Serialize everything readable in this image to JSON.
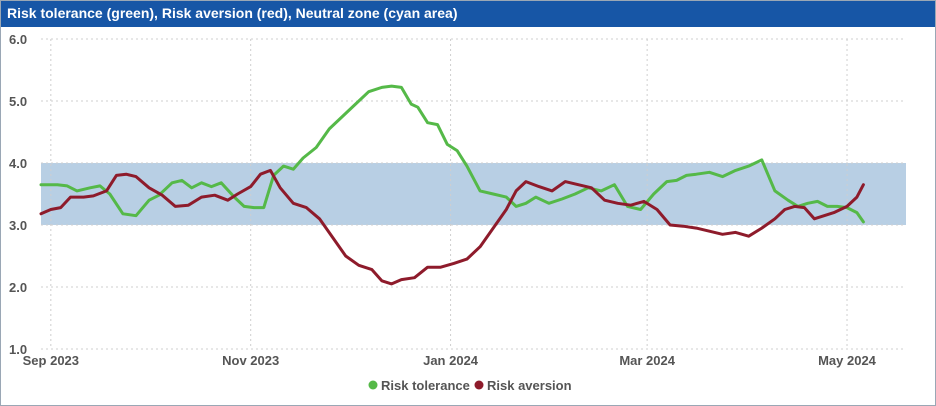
{
  "header": {
    "title": "Risk tolerance (green), Risk aversion (red), Neutral zone (cyan area)"
  },
  "chart_data": {
    "type": "line",
    "title": "Risk tolerance (green), Risk aversion (red), Neutral zone (cyan area)",
    "xlabel": "",
    "ylabel": "",
    "ylim": [
      1.0,
      6.0
    ],
    "yticks": [
      "1.0",
      "2.0",
      "3.0",
      "4.0",
      "5.0",
      "6.0"
    ],
    "xlim": [
      "2023-08-29",
      "2024-05-19"
    ],
    "xticks": [
      {
        "date": "2023-09-01",
        "label": "Sep 2023"
      },
      {
        "date": "2023-11-01",
        "label": "Nov 2023"
      },
      {
        "date": "2024-01-01",
        "label": "Jan 2024"
      },
      {
        "date": "2024-03-01",
        "label": "Mar 2024"
      },
      {
        "date": "2024-05-01",
        "label": "May 2024"
      }
    ],
    "neutral_zone": {
      "y_min": 3.0,
      "y_max": 4.0,
      "color": "#b8cfe4"
    },
    "grid": true,
    "legend_position": "bottom-center",
    "series": [
      {
        "name": "Risk tolerance",
        "color": "#55b948",
        "x": [
          "2023-08-29",
          "2023-09-03",
          "2023-09-06",
          "2023-09-09",
          "2023-09-13",
          "2023-09-16",
          "2023-09-19",
          "2023-09-23",
          "2023-09-27",
          "2023-10-01",
          "2023-10-04",
          "2023-10-08",
          "2023-10-11",
          "2023-10-14",
          "2023-10-17",
          "2023-10-20",
          "2023-10-23",
          "2023-10-27",
          "2023-10-30",
          "2023-11-02",
          "2023-11-05",
          "2023-11-08",
          "2023-11-11",
          "2023-11-14",
          "2023-11-17",
          "2023-11-21",
          "2023-11-25",
          "2023-11-29",
          "2023-12-03",
          "2023-12-07",
          "2023-12-11",
          "2023-12-14",
          "2023-12-17",
          "2023-12-20",
          "2023-12-22",
          "2023-12-25",
          "2023-12-28",
          "2023-12-31",
          "2024-01-03",
          "2024-01-06",
          "2024-01-10",
          "2024-01-14",
          "2024-01-18",
          "2024-01-21",
          "2024-01-24",
          "2024-01-27",
          "2024-01-31",
          "2024-02-04",
          "2024-02-08",
          "2024-02-12",
          "2024-02-16",
          "2024-02-20",
          "2024-02-24",
          "2024-02-28",
          "2024-03-03",
          "2024-03-07",
          "2024-03-10",
          "2024-03-13",
          "2024-03-16",
          "2024-03-20",
          "2024-03-24",
          "2024-03-28",
          "2024-04-01",
          "2024-04-05",
          "2024-04-09",
          "2024-04-13",
          "2024-04-16",
          "2024-04-19",
          "2024-04-22",
          "2024-04-25",
          "2024-04-28",
          "2024-05-01",
          "2024-05-04",
          "2024-05-06"
        ],
        "values": [
          3.65,
          3.65,
          3.63,
          3.55,
          3.6,
          3.63,
          3.5,
          3.18,
          3.15,
          3.4,
          3.48,
          3.68,
          3.72,
          3.6,
          3.68,
          3.62,
          3.68,
          3.45,
          3.3,
          3.28,
          3.28,
          3.8,
          3.95,
          3.9,
          4.08,
          4.25,
          4.55,
          4.75,
          4.95,
          5.15,
          5.22,
          5.24,
          5.22,
          4.95,
          4.9,
          4.65,
          4.62,
          4.3,
          4.2,
          3.95,
          3.55,
          3.5,
          3.45,
          3.3,
          3.35,
          3.45,
          3.35,
          3.42,
          3.5,
          3.6,
          3.55,
          3.65,
          3.3,
          3.25,
          3.5,
          3.7,
          3.72,
          3.8,
          3.82,
          3.85,
          3.78,
          3.88,
          3.95,
          4.05,
          3.55,
          3.4,
          3.3,
          3.35,
          3.38,
          3.3,
          3.3,
          3.28,
          3.2,
          3.05
        ]
      },
      {
        "name": "Risk aversion",
        "color": "#8e1b2b",
        "x": [
          "2023-08-29",
          "2023-09-01",
          "2023-09-04",
          "2023-09-07",
          "2023-09-11",
          "2023-09-14",
          "2023-09-18",
          "2023-09-21",
          "2023-09-24",
          "2023-09-27",
          "2023-10-01",
          "2023-10-05",
          "2023-10-09",
          "2023-10-13",
          "2023-10-17",
          "2023-10-21",
          "2023-10-25",
          "2023-10-28",
          "2023-11-01",
          "2023-11-04",
          "2023-11-07",
          "2023-11-10",
          "2023-11-14",
          "2023-11-18",
          "2023-11-22",
          "2023-11-26",
          "2023-11-30",
          "2023-12-04",
          "2023-12-08",
          "2023-12-11",
          "2023-12-14",
          "2023-12-17",
          "2023-12-21",
          "2023-12-25",
          "2023-12-29",
          "2024-01-02",
          "2024-01-06",
          "2024-01-10",
          "2024-01-14",
          "2024-01-18",
          "2024-01-21",
          "2024-01-24",
          "2024-01-28",
          "2024-02-01",
          "2024-02-05",
          "2024-02-09",
          "2024-02-13",
          "2024-02-17",
          "2024-02-21",
          "2024-02-25",
          "2024-02-29",
          "2024-03-04",
          "2024-03-08",
          "2024-03-12",
          "2024-03-16",
          "2024-03-20",
          "2024-03-24",
          "2024-03-28",
          "2024-04-01",
          "2024-04-05",
          "2024-04-09",
          "2024-04-12",
          "2024-04-15",
          "2024-04-18",
          "2024-04-21",
          "2024-04-24",
          "2024-04-27",
          "2024-05-01",
          "2024-05-04",
          "2024-05-06"
        ],
        "values": [
          3.18,
          3.25,
          3.28,
          3.45,
          3.45,
          3.47,
          3.55,
          3.8,
          3.82,
          3.78,
          3.6,
          3.48,
          3.3,
          3.32,
          3.45,
          3.48,
          3.4,
          3.5,
          3.62,
          3.82,
          3.88,
          3.6,
          3.35,
          3.28,
          3.1,
          2.8,
          2.5,
          2.35,
          2.28,
          2.1,
          2.05,
          2.12,
          2.15,
          2.32,
          2.32,
          2.38,
          2.45,
          2.65,
          2.95,
          3.25,
          3.55,
          3.7,
          3.62,
          3.55,
          3.7,
          3.65,
          3.6,
          3.4,
          3.35,
          3.32,
          3.38,
          3.25,
          3.0,
          2.98,
          2.95,
          2.9,
          2.85,
          2.88,
          2.82,
          2.95,
          3.1,
          3.25,
          3.3,
          3.28,
          3.1,
          3.15,
          3.2,
          3.3,
          3.45,
          3.65
        ]
      }
    ]
  }
}
